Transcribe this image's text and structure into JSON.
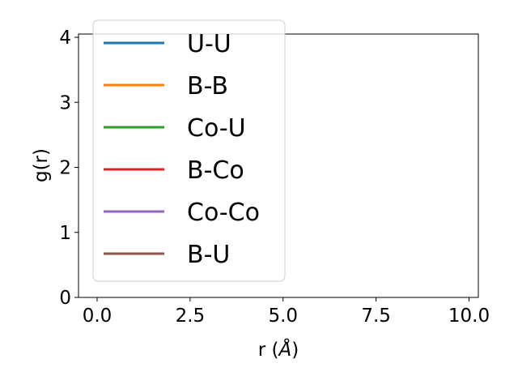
{
  "chart_data": {
    "type": "line",
    "xlabel_main": "r (",
    "xlabel_unit": "Å",
    "xlabel_end": ")",
    "ylabel": "g(r)",
    "xlim": [
      -0.5,
      10.25
    ],
    "ylim": [
      0,
      4.05
    ],
    "x_ticks": [
      0,
      2.5,
      5,
      7.5,
      10
    ],
    "x_tick_labels": [
      "0.0",
      "2.5",
      "5.0",
      "7.5",
      "10.0"
    ],
    "y_ticks": [
      0,
      1,
      2,
      3,
      4
    ],
    "y_tick_labels": [
      "0",
      "1",
      "2",
      "3",
      "4"
    ],
    "grid": false,
    "legend_position": "top-left",
    "x_start": 0,
    "x_step": 0.1,
    "series": [
      {
        "name": "U-U",
        "color": "#1f77b4",
        "values": []
      },
      {
        "name": "B-B",
        "color": "#ff7f0e",
        "values": []
      },
      {
        "name": "Co-U",
        "color": "#2ca02c",
        "values": []
      },
      {
        "name": "B-Co",
        "color": "#d62728",
        "values": []
      },
      {
        "name": "Co-Co",
        "color": "#9467bd",
        "values": []
      },
      {
        "name": "B-U",
        "color": "#8c564b",
        "values": []
      }
    ]
  }
}
